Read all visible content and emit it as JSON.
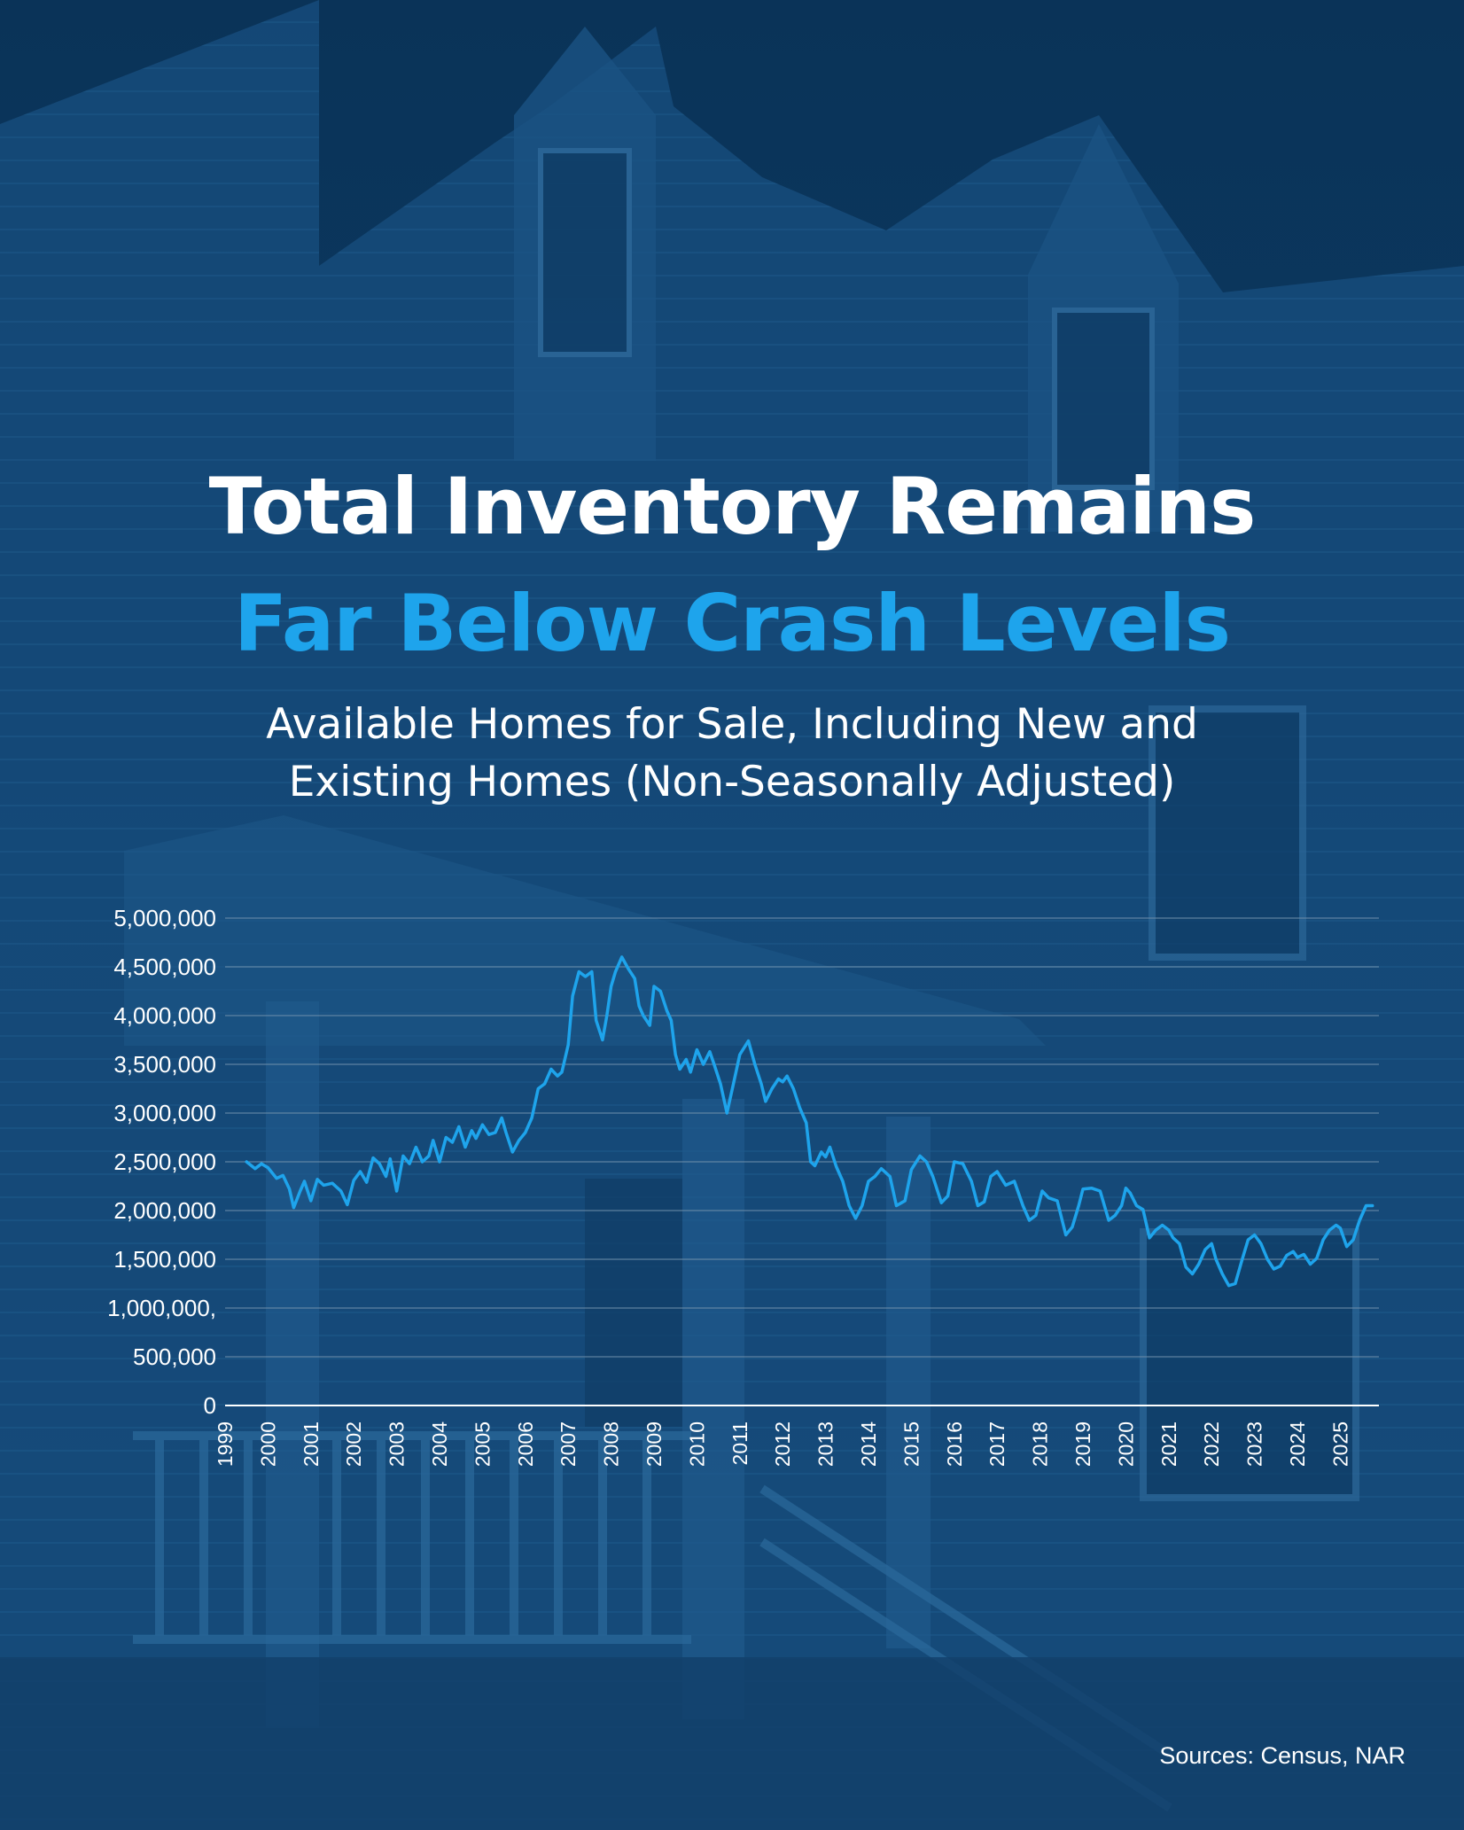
{
  "header": {
    "title_line1": "Total Inventory Remains",
    "title_line2": "Far Below Crash Levels",
    "subtitle_line1": "Available Homes for Sale, Including New and",
    "subtitle_line2": "Existing Homes (Non-Seasonally Adjusted)"
  },
  "footer": {
    "source": "Sources: Census, NAR"
  },
  "colors": {
    "background": "#0d3d66",
    "title_white": "#ffffff",
    "title_accent": "#1ea4ec",
    "line": "#1ea4ec",
    "gridline": "#6f8fab"
  },
  "chart_data": {
    "type": "line",
    "ylim": [
      0,
      5000000
    ],
    "xlim": [
      1999,
      2025.9
    ],
    "grid": true,
    "y_tick_labels": [
      "5,000,000",
      "4,500,000",
      "4,000,000",
      "3,500,000",
      "3,000,000",
      "2,500,000",
      "2,000,000",
      "1,500,000",
      "1,000,000,",
      "500,000",
      "0"
    ],
    "y_tick_values": [
      5000000,
      4500000,
      4000000,
      3500000,
      3000000,
      2500000,
      2000000,
      1500000,
      1000000,
      500000,
      0
    ],
    "x_tick_labels": [
      "1999",
      "2000",
      "2001",
      "2002",
      "2003",
      "2004",
      "2005",
      "2006",
      "2007",
      "2008",
      "2009",
      "2010",
      "2011",
      "2012",
      "2013",
      "2014",
      "2015",
      "2016",
      "2017",
      "2018",
      "2019",
      "2020",
      "2021",
      "2022",
      "2023",
      "2024",
      "2025"
    ],
    "x_tick_values": [
      1999,
      2000,
      2001,
      2002,
      2003,
      2004,
      2005,
      2006,
      2007,
      2008,
      2009,
      2010,
      2011,
      2012,
      2013,
      2014,
      2015,
      2016,
      2017,
      2018,
      2019,
      2020,
      2021,
      2022,
      2023,
      2024,
      2025
    ],
    "series": [
      {
        "x": [
          1999.5,
          1999.7,
          1999.85,
          2000.0,
          2000.2,
          2000.35,
          2000.5,
          2000.6,
          2000.75,
          2000.85,
          2001.0,
          2001.15,
          2001.3,
          2001.5,
          2001.7,
          2001.85,
          2002.0,
          2002.15,
          2002.3,
          2002.45,
          2002.6,
          2002.75,
          2002.85,
          2003.0,
          2003.15,
          2003.3,
          2003.45,
          2003.6,
          2003.75,
          2003.85,
          2004.0,
          2004.15,
          2004.3,
          2004.45,
          2004.6,
          2004.75,
          2004.85,
          2005.0,
          2005.15,
          2005.3,
          2005.45,
          2005.55,
          2005.7,
          2005.85,
          2006.0,
          2006.15,
          2006.3,
          2006.45,
          2006.6,
          2006.75,
          2006.85,
          2007.0,
          2007.1,
          2007.25,
          2007.4,
          2007.55,
          2007.65,
          2007.8,
          2007.9,
          2008.0,
          2008.1,
          2008.25,
          2008.4,
          2008.55,
          2008.65,
          2008.75,
          2008.9,
          2009.0,
          2009.15,
          2009.3,
          2009.4,
          2009.5,
          2009.6,
          2009.75,
          2009.85,
          2010.0,
          2010.15,
          2010.3,
          2010.4,
          2010.55,
          2010.7,
          2010.85,
          2011.0,
          2011.2,
          2011.35,
          2011.5,
          2011.6,
          2011.75,
          2011.9,
          2012.0,
          2012.1,
          2012.25,
          2012.4,
          2012.55,
          2012.65,
          2012.75,
          2012.9,
          2013.0,
          2013.1,
          2013.25,
          2013.4,
          2013.55,
          2013.7,
          2013.85,
          2014.0,
          2014.15,
          2014.3,
          2014.5,
          2014.65,
          2014.85,
          2015.0,
          2015.2,
          2015.35,
          2015.5,
          2015.7,
          2015.85,
          2016.0,
          2016.2,
          2016.4,
          2016.55,
          2016.7,
          2016.85,
          2017.0,
          2017.2,
          2017.4,
          2017.6,
          2017.75,
          2017.9,
          2018.05,
          2018.2,
          2018.4,
          2018.6,
          2018.75,
          2018.9,
          2019.0,
          2019.2,
          2019.4,
          2019.6,
          2019.75,
          2019.9,
          2020.0,
          2020.1,
          2020.25,
          2020.4,
          2020.55,
          2020.7,
          2020.85,
          2021.0,
          2021.1,
          2021.25,
          2021.4,
          2021.55,
          2021.7,
          2021.85,
          2022.0,
          2022.1,
          2022.25,
          2022.4,
          2022.55,
          2022.7,
          2022.85,
          2023.0,
          2023.15,
          2023.3,
          2023.45,
          2023.6,
          2023.75,
          2023.9,
          2024.0,
          2024.15,
          2024.3,
          2024.45,
          2024.6,
          2024.75,
          2024.9,
          2025.0,
          2025.15,
          2025.3,
          2025.45,
          2025.6,
          2025.75
        ],
        "values": [
          2500000,
          2430000,
          2480000,
          2440000,
          2330000,
          2360000,
          2220000,
          2030000,
          2200000,
          2300000,
          2100000,
          2320000,
          2260000,
          2280000,
          2200000,
          2060000,
          2310000,
          2400000,
          2290000,
          2540000,
          2480000,
          2350000,
          2530000,
          2200000,
          2560000,
          2480000,
          2650000,
          2500000,
          2560000,
          2720000,
          2500000,
          2750000,
          2700000,
          2860000,
          2650000,
          2820000,
          2740000,
          2880000,
          2780000,
          2800000,
          2950000,
          2800000,
          2600000,
          2720000,
          2800000,
          2950000,
          3250000,
          3300000,
          3450000,
          3380000,
          3420000,
          3700000,
          4200000,
          4450000,
          4400000,
          4450000,
          3950000,
          3750000,
          4000000,
          4300000,
          4450000,
          4600000,
          4480000,
          4380000,
          4100000,
          4000000,
          3900000,
          4300000,
          4250000,
          4050000,
          3950000,
          3600000,
          3450000,
          3550000,
          3420000,
          3650000,
          3500000,
          3630000,
          3500000,
          3300000,
          3000000,
          3300000,
          3600000,
          3740000,
          3500000,
          3300000,
          3120000,
          3250000,
          3350000,
          3320000,
          3380000,
          3250000,
          3050000,
          2900000,
          2500000,
          2460000,
          2600000,
          2550000,
          2650000,
          2450000,
          2300000,
          2050000,
          1920000,
          2050000,
          2300000,
          2350000,
          2430000,
          2350000,
          2050000,
          2100000,
          2420000,
          2560000,
          2500000,
          2350000,
          2080000,
          2150000,
          2500000,
          2480000,
          2300000,
          2050000,
          2090000,
          2350000,
          2400000,
          2260000,
          2300000,
          2050000,
          1900000,
          1950000,
          2200000,
          2130000,
          2100000,
          1750000,
          1830000,
          2050000,
          2220000,
          2230000,
          2200000,
          1900000,
          1950000,
          2050000,
          2230000,
          2180000,
          2050000,
          2010000,
          1720000,
          1800000,
          1850000,
          1800000,
          1720000,
          1660000,
          1420000,
          1350000,
          1450000,
          1600000,
          1660000,
          1500000,
          1350000,
          1230000,
          1250000,
          1480000,
          1700000,
          1750000,
          1660000,
          1500000,
          1400000,
          1430000,
          1540000,
          1580000,
          1520000,
          1550000,
          1450000,
          1510000,
          1700000,
          1800000,
          1850000,
          1820000,
          1630000,
          1700000,
          1900000,
          2050000,
          2050000
        ]
      }
    ]
  }
}
